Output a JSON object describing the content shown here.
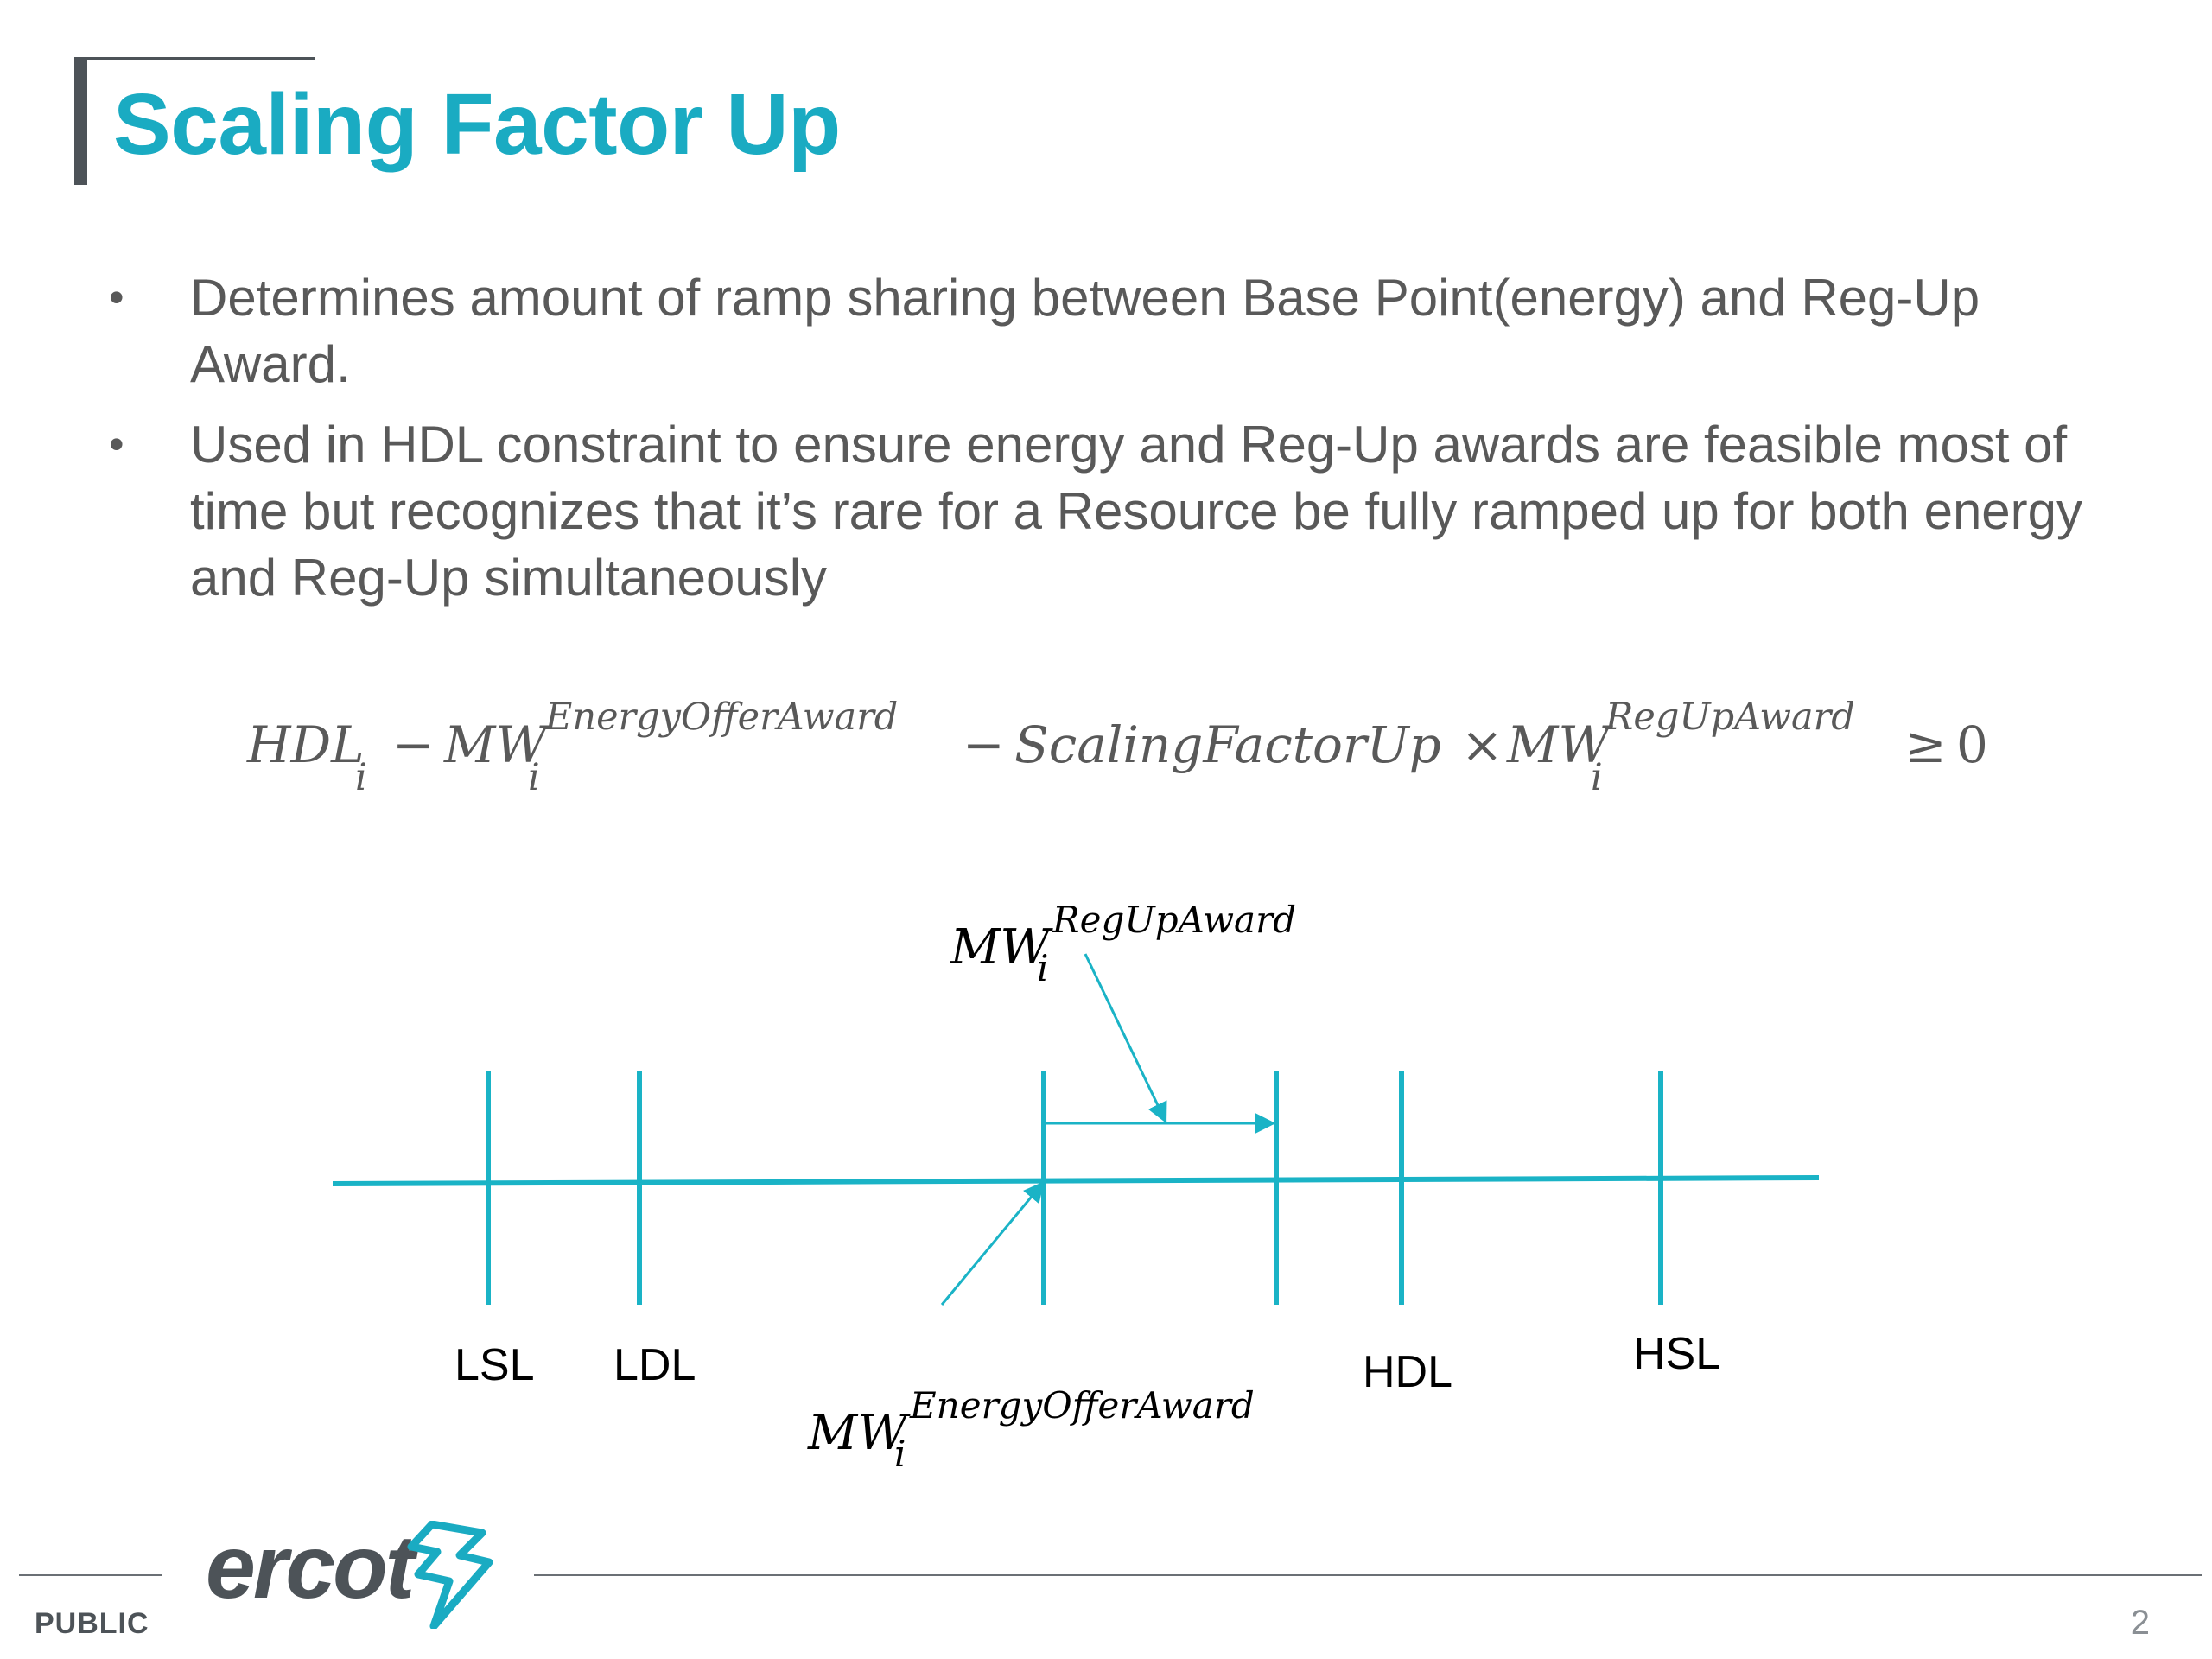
{
  "slide": {
    "title": "Scaling Factor Up",
    "bullets": [
      "Determines amount of ramp sharing between Base Point(energy) and Reg-Up Award.",
      "Used in HDL constraint to ensure energy and Reg-Up awards are feasible most of time but recognizes that it’s rare for a Resource be fully ramped up for both energy and Reg-Up simultaneously"
    ],
    "bullet_glyph": "•"
  },
  "equation": {
    "hdl": "HDL",
    "hdl_sub": "i",
    "minus1": "−",
    "mw1": "MW",
    "mw1_sup": "EnergyOfferAward",
    "mw1_sub": "i",
    "minus2": "−",
    "scaling": "ScalingFactorUp",
    "times": "×",
    "mw2": "MW",
    "mw2_sup": "RegUpAward",
    "mw2_sub": "i",
    "ge": "≥",
    "zero": "0"
  },
  "diagram": {
    "labels": {
      "lsl": "LSL",
      "ldl": "LDL",
      "hdl": "HDL",
      "hsl": "HSL"
    },
    "regup_label": {
      "base": "MW",
      "sup": "RegUpAward",
      "sub": "i"
    },
    "energy_label": {
      "base": "MW",
      "sup": "EnergyOfferAward",
      "sub": "i"
    },
    "line_color": "#1ab3c6"
  },
  "footer": {
    "classification": "PUBLIC",
    "page_number": "2",
    "logo_text": "ercot",
    "logo_color": "#4d5358",
    "logo_accent": "#1aabc2"
  }
}
